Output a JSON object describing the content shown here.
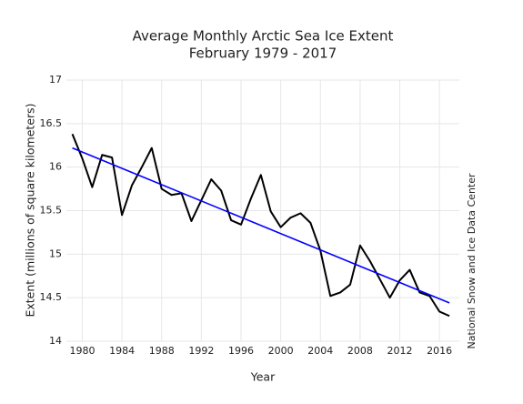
{
  "chart_data": {
    "type": "line",
    "title": "Average Monthly Arctic Sea Ice Extent",
    "subtitle": "February 1979 - 2017",
    "x_label": "Year",
    "y_label": "Extent (millions of square kilometers)",
    "source": "National Snow and Ice Data Center",
    "x": [
      1979,
      1980,
      1981,
      1982,
      1983,
      1984,
      1985,
      1986,
      1987,
      1988,
      1989,
      1990,
      1991,
      1992,
      1993,
      1994,
      1995,
      1996,
      1997,
      1998,
      1999,
      2000,
      2001,
      2002,
      2003,
      2004,
      2005,
      2006,
      2007,
      2008,
      2009,
      2010,
      2011,
      2012,
      2013,
      2014,
      2015,
      2016,
      2017
    ],
    "series": [
      {
        "color": "#000000",
        "values": [
          16.38,
          16.1,
          15.77,
          16.14,
          16.11,
          15.45,
          15.79,
          16.0,
          16.22,
          15.75,
          15.68,
          15.7,
          15.38,
          15.62,
          15.86,
          15.73,
          15.39,
          15.34,
          15.64,
          15.91,
          15.49,
          15.31,
          15.42,
          15.47,
          15.36,
          15.04,
          14.52,
          14.56,
          14.65,
          15.1,
          14.92,
          14.71,
          14.5,
          14.7,
          14.82,
          14.56,
          14.52,
          14.34,
          14.29
        ]
      }
    ],
    "trend": {
      "color": "#0000ff",
      "x": [
        1979,
        2017
      ],
      "values": [
        16.22,
        14.44
      ]
    },
    "xlim": [
      1978.4,
      2018
    ],
    "ylim": [
      14,
      17
    ],
    "xticks": [
      1980,
      1984,
      1988,
      1992,
      1996,
      2000,
      2004,
      2008,
      2012,
      2016
    ],
    "yticks": [
      14,
      14.5,
      15,
      15.5,
      16,
      16.5,
      17
    ],
    "grid": true
  }
}
